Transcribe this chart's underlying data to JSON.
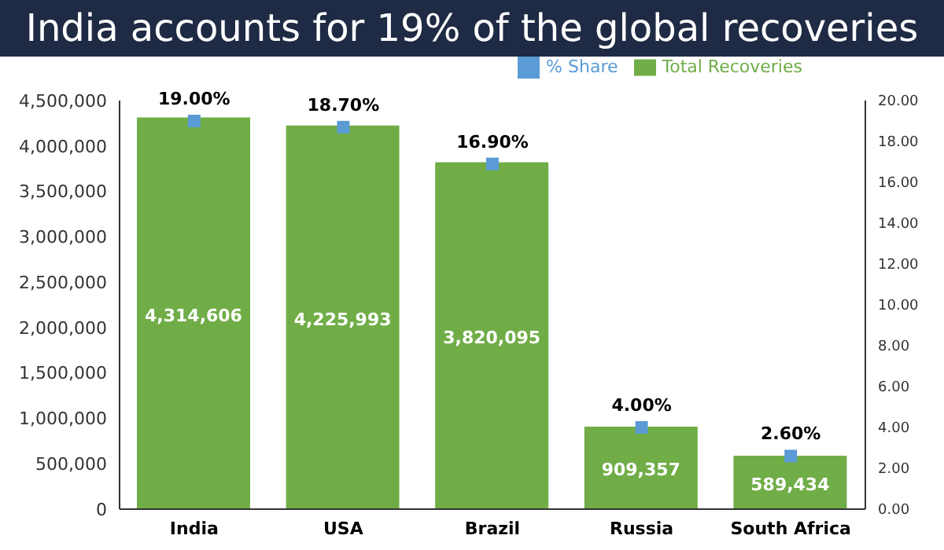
{
  "chart_data": {
    "type": "bar",
    "title": "India accounts for 19% of the global recoveries",
    "categories": [
      "India",
      "USA",
      "Brazil",
      "Russia",
      "South Africa"
    ],
    "series": [
      {
        "name": "Total Recoveries",
        "type": "bar",
        "color": "#70ad47",
        "values": [
          4314606,
          4225993,
          3820095,
          909357,
          589434
        ],
        "value_labels": [
          "4,314,606",
          "4,225,993",
          "3,820,095",
          "909,357",
          "589,434"
        ]
      },
      {
        "name": "% Share",
        "type": "scatter",
        "axis": "y2",
        "color": "#5b9bd5",
        "values": [
          19.0,
          18.7,
          16.9,
          4.0,
          2.6
        ],
        "value_labels": [
          "19.00%",
          "18.70%",
          "16.90%",
          "4.00%",
          "2.60%"
        ]
      }
    ],
    "ylim": [
      0,
      4500000
    ],
    "yticks": [
      {
        "value": 0,
        "label": "0"
      },
      {
        "value": 500000,
        "label": "500,000"
      },
      {
        "value": 1000000,
        "label": "1,000,000"
      },
      {
        "value": 1500000,
        "label": "1,500,000"
      },
      {
        "value": 2000000,
        "label": "2,000,000"
      },
      {
        "value": 2500000,
        "label": "2,500,000"
      },
      {
        "value": 3000000,
        "label": "3,000,000"
      },
      {
        "value": 3500000,
        "label": "3,500,000"
      },
      {
        "value": 4000000,
        "label": "4,000,000"
      },
      {
        "value": 4500000,
        "label": "4,500,000"
      }
    ],
    "y2lim": [
      0,
      20
    ],
    "y2ticks": [
      {
        "value": 0,
        "label": "0.00"
      },
      {
        "value": 2,
        "label": "2.00"
      },
      {
        "value": 4,
        "label": "4.00"
      },
      {
        "value": 6,
        "label": "6.00"
      },
      {
        "value": 8,
        "label": "8.00"
      },
      {
        "value": 10,
        "label": "10.00"
      },
      {
        "value": 12,
        "label": "12.00"
      },
      {
        "value": 14,
        "label": "14.00"
      },
      {
        "value": 16,
        "label": "16.00"
      },
      {
        "value": 18,
        "label": "18.00"
      },
      {
        "value": 20,
        "label": "20.00"
      }
    ],
    "legend": "top right",
    "grid": false,
    "marker": "square"
  }
}
